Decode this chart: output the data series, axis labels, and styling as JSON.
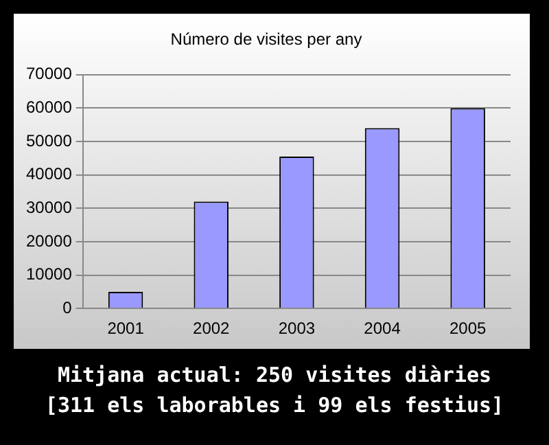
{
  "chart_data": {
    "type": "bar",
    "title": "Número de visites per any",
    "categories": [
      "2001",
      "2002",
      "2003",
      "2004",
      "2005"
    ],
    "values": [
      5000,
      32000,
      45500,
      54000,
      60000
    ],
    "color": "#9999ff",
    "ylim": [
      0,
      70000
    ],
    "yticks": [
      0,
      10000,
      20000,
      30000,
      40000,
      50000,
      60000,
      70000
    ],
    "grid": "y",
    "annotations": [
      "Mitjana actual: 250 visites diàries",
      "[311 els laborables i 99 els festius]"
    ]
  }
}
